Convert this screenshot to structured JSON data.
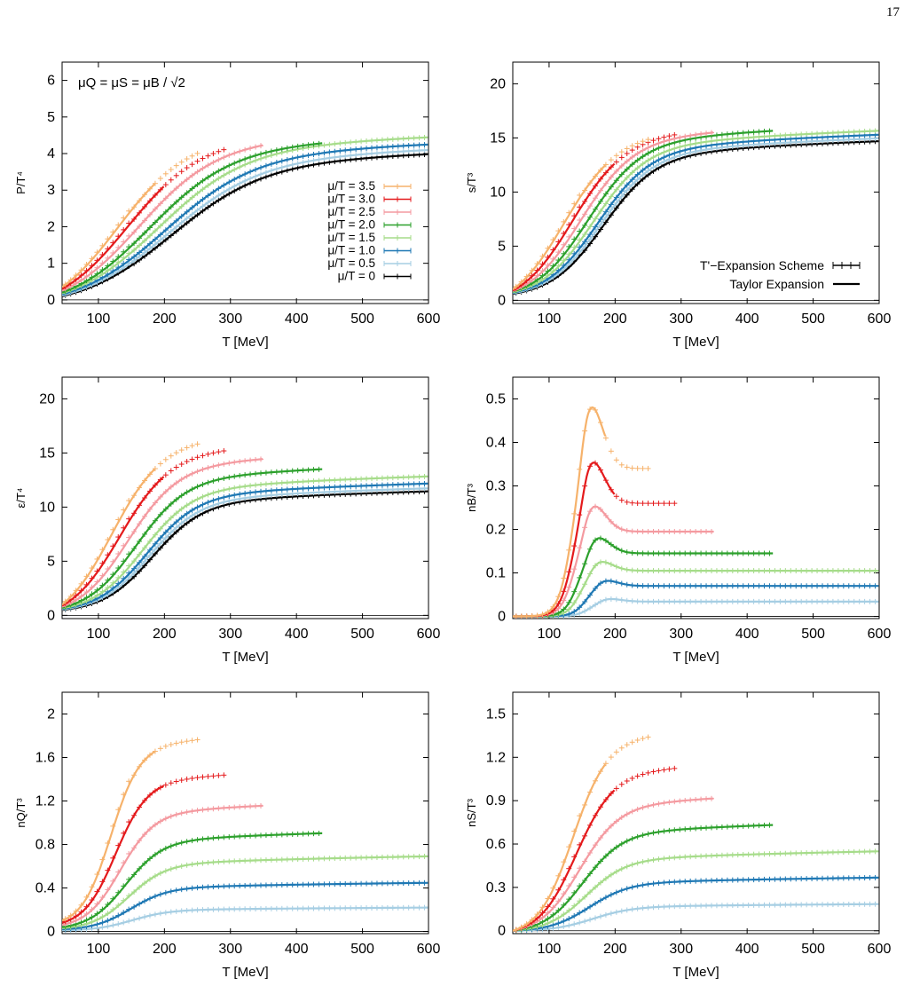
{
  "page": {
    "number": "17"
  },
  "colors": {
    "3.5": "#f6b26b",
    "3.0": "#e41a1c",
    "2.5": "#f49aa0",
    "2.0": "#2ca02c",
    "1.5": "#a6dc8a",
    "1.0": "#1f78b4",
    "0.5": "#a6cee3",
    "0": "#000000"
  },
  "legend_entries": [
    {
      "key": "3.5",
      "label": "μ/T = 3.5"
    },
    {
      "key": "3.0",
      "label": "μ/T = 3.0"
    },
    {
      "key": "2.5",
      "label": "μ/T = 2.5"
    },
    {
      "key": "2.0",
      "label": "μ/T = 2.0"
    },
    {
      "key": "1.5",
      "label": "μ/T = 1.5"
    },
    {
      "key": "1.0",
      "label": "μ/T = 1.0"
    },
    {
      "key": "0.5",
      "label": "μ/T = 0.5"
    },
    {
      "key": "0",
      "label": "μ/T = 0"
    }
  ],
  "legend_scheme": {
    "expansion": "T'−Expansion Scheme",
    "taylor": "Taylor Expansion"
  },
  "annotation": "μQ = μS = μB / √2",
  "chart_data": [
    {
      "id": "pressure",
      "type": "line",
      "ylabel": "P/T⁴",
      "xlabel": "T [MeV]",
      "xlim": [
        45,
        600
      ],
      "ylim": [
        -0.1,
        6.5
      ],
      "xticks": [
        100,
        200,
        300,
        400,
        500,
        600
      ],
      "yticks": [
        0,
        1,
        2,
        3,
        4,
        5,
        6
      ],
      "legend": "center-right",
      "series": [
        {
          "key": "0",
          "xmax": 600,
          "xmid": 205,
          "w": 70,
          "base": 0.1,
          "amp": 4.8
        },
        {
          "key": "0.5",
          "xmax": 600,
          "xmid": 200,
          "w": 70,
          "base": 0.12,
          "amp": 4.95
        },
        {
          "key": "1.0",
          "xmax": 600,
          "xmid": 195,
          "w": 68,
          "base": 0.15,
          "amp": 5.1
        },
        {
          "key": "1.5",
          "xmax": 600,
          "xmid": 185,
          "w": 66,
          "base": 0.18,
          "amp": 5.35
        },
        {
          "key": "2.0",
          "xmax": 440,
          "xmid": 172,
          "w": 62,
          "base": 0.2,
          "amp": 5.4
        },
        {
          "key": "2.5",
          "xmax": 350,
          "xmid": 157,
          "w": 58,
          "base": 0.25,
          "amp": 5.6
        },
        {
          "key": "3.0",
          "xmax": 290,
          "xmid": 140,
          "w": 54,
          "base": 0.3,
          "amp": 5.75
        },
        {
          "key": "3.5",
          "xmax": 250,
          "xmid": 125,
          "w": 52,
          "base": 0.35,
          "amp": 6.0
        }
      ]
    },
    {
      "id": "entropy",
      "type": "line",
      "ylabel": "s/T³",
      "xlabel": "T [MeV]",
      "xlim": [
        45,
        600
      ],
      "ylim": [
        -0.3,
        22
      ],
      "xticks": [
        100,
        200,
        300,
        400,
        500,
        600
      ],
      "yticks": [
        0,
        5,
        10,
        15,
        20
      ],
      "legend": "bottom-right",
      "series": [
        {
          "key": "0",
          "xmax": 600,
          "xmid": 180,
          "w": 40,
          "base": 0.6,
          "amp": 16.3
        },
        {
          "key": "0.5",
          "xmax": 600,
          "xmid": 176,
          "w": 40,
          "base": 0.65,
          "amp": 16.6
        },
        {
          "key": "1.0",
          "xmax": 600,
          "xmid": 172,
          "w": 40,
          "base": 0.7,
          "amp": 17.0
        },
        {
          "key": "1.5",
          "xmax": 600,
          "xmid": 165,
          "w": 40,
          "base": 0.75,
          "amp": 17.5
        },
        {
          "key": "2.0",
          "xmax": 440,
          "xmid": 157,
          "w": 40,
          "base": 0.8,
          "amp": 18.2
        },
        {
          "key": "2.5",
          "xmax": 350,
          "xmid": 146,
          "w": 40,
          "base": 0.85,
          "amp": 18.8
        },
        {
          "key": "3.0",
          "xmax": 290,
          "xmid": 133,
          "w": 40,
          "base": 0.9,
          "amp": 19.6
        },
        {
          "key": "3.5",
          "xmax": 250,
          "xmid": 120,
          "w": 40,
          "base": 1.0,
          "amp": 20.3
        }
      ]
    },
    {
      "id": "energy",
      "type": "line",
      "ylabel": "ε/T⁴",
      "xlabel": "T [MeV]",
      "xlim": [
        45,
        600
      ],
      "ylim": [
        -0.3,
        22
      ],
      "xticks": [
        100,
        200,
        300,
        400,
        500,
        600
      ],
      "yticks": [
        0,
        5,
        10,
        15,
        20
      ],
      "legend": "none",
      "series": [
        {
          "key": "0",
          "xmax": 600,
          "xmid": 180,
          "w": 38,
          "base": 0.5,
          "amp": 12.6
        },
        {
          "key": "0.5",
          "xmax": 600,
          "xmid": 176,
          "w": 38,
          "base": 0.55,
          "amp": 12.9
        },
        {
          "key": "1.0",
          "xmax": 600,
          "xmid": 172,
          "w": 38,
          "base": 0.6,
          "amp": 13.4
        },
        {
          "key": "1.5",
          "xmax": 600,
          "xmid": 165,
          "w": 38,
          "base": 0.65,
          "amp": 14.2
        },
        {
          "key": "2.0",
          "xmax": 440,
          "xmid": 155,
          "w": 38,
          "base": 0.7,
          "amp": 15.6
        },
        {
          "key": "2.5",
          "xmax": 350,
          "xmid": 143,
          "w": 38,
          "base": 0.8,
          "amp": 17.4
        },
        {
          "key": "3.0",
          "xmax": 290,
          "xmid": 130,
          "w": 38,
          "base": 0.9,
          "amp": 19.3
        },
        {
          "key": "3.5",
          "xmax": 250,
          "xmid": 118,
          "w": 38,
          "base": 1.0,
          "amp": 21.4
        }
      ]
    },
    {
      "id": "nB",
      "type": "line",
      "ylabel": "nB/T³",
      "xlabel": "T [MeV]",
      "xlim": [
        45,
        600
      ],
      "ylim": [
        -0.005,
        0.55
      ],
      "xticks": [
        100,
        200,
        300,
        400,
        500,
        600
      ],
      "yticks": [
        0,
        0.1,
        0.2,
        0.3,
        0.4,
        0.5
      ],
      "legend": "none",
      "peaked": true,
      "series": [
        {
          "key": "0.5",
          "xmax": 600,
          "xpk": 185,
          "w": 20,
          "peak": 0.042,
          "plateau": 0.034
        },
        {
          "key": "1.0",
          "xmax": 600,
          "xpk": 180,
          "w": 20,
          "peak": 0.086,
          "plateau": 0.07
        },
        {
          "key": "1.5",
          "xmax": 600,
          "xpk": 172,
          "w": 20,
          "peak": 0.132,
          "plateau": 0.105
        },
        {
          "key": "2.0",
          "xmax": 440,
          "xpk": 168,
          "w": 20,
          "peak": 0.19,
          "plateau": 0.145
        },
        {
          "key": "2.5",
          "xmax": 350,
          "xpk": 162,
          "w": 20,
          "peak": 0.268,
          "plateau": 0.195
        },
        {
          "key": "3.0",
          "xmax": 290,
          "xpk": 160,
          "w": 20,
          "peak": 0.376,
          "plateau": 0.26
        },
        {
          "key": "3.5",
          "xmax": 250,
          "xpk": 158,
          "w": 20,
          "peak": 0.512,
          "plateau": 0.34
        }
      ]
    },
    {
      "id": "nQ",
      "type": "line",
      "ylabel": "nQ/T³",
      "xlabel": "T [MeV]",
      "xlim": [
        45,
        600
      ],
      "ylim": [
        -0.02,
        2.2
      ],
      "xticks": [
        100,
        200,
        300,
        400,
        500,
        600
      ],
      "yticks": [
        0,
        0.4,
        0.8,
        1.2,
        1.6,
        2
      ],
      "ytickLabels": [
        "0",
        "0.4",
        "0.8",
        "1.2",
        "1.6",
        "2"
      ],
      "legend": "none",
      "series": [
        {
          "key": "0.5",
          "xmax": 600,
          "xmid": 150,
          "w": 28,
          "base": 0.01,
          "amp": 0.24
        },
        {
          "key": "1.0",
          "xmax": 600,
          "xmid": 148,
          "w": 28,
          "base": 0.02,
          "amp": 0.49
        },
        {
          "key": "1.5",
          "xmax": 600,
          "xmid": 145,
          "w": 28,
          "base": 0.03,
          "amp": 0.76
        },
        {
          "key": "2.0",
          "xmax": 440,
          "xmid": 140,
          "w": 28,
          "base": 0.04,
          "amp": 1.03
        },
        {
          "key": "2.5",
          "xmax": 350,
          "xmid": 132,
          "w": 26,
          "base": 0.06,
          "amp": 1.34
        },
        {
          "key": "3.0",
          "xmax": 290,
          "xmid": 125,
          "w": 24,
          "base": 0.08,
          "amp": 1.69
        },
        {
          "key": "3.5",
          "xmax": 250,
          "xmid": 118,
          "w": 22,
          "base": 0.1,
          "amp": 2.1
        }
      ]
    },
    {
      "id": "nS",
      "type": "line",
      "ylabel": "nS/T³",
      "xlabel": "T [MeV]",
      "xlim": [
        45,
        600
      ],
      "ylim": [
        -0.02,
        1.65
      ],
      "xticks": [
        100,
        200,
        300,
        400,
        500,
        600
      ],
      "yticks": [
        0,
        0.3,
        0.6,
        0.9,
        1.2,
        1.5
      ],
      "legend": "none",
      "series": [
        {
          "key": "0.5",
          "xmax": 600,
          "xmid": 165,
          "w": 30,
          "base": 0.0,
          "amp": 0.21
        },
        {
          "key": "1.0",
          "xmax": 600,
          "xmid": 160,
          "w": 30,
          "base": 0.0,
          "amp": 0.42
        },
        {
          "key": "1.5",
          "xmax": 600,
          "xmid": 155,
          "w": 30,
          "base": 0.0,
          "amp": 0.63
        },
        {
          "key": "2.0",
          "xmax": 440,
          "xmid": 150,
          "w": 30,
          "base": 0.0,
          "amp": 0.87
        },
        {
          "key": "2.5",
          "xmax": 350,
          "xmid": 145,
          "w": 30,
          "base": 0.0,
          "amp": 1.12
        },
        {
          "key": "3.0",
          "xmax": 290,
          "xmid": 140,
          "w": 28,
          "base": 0.0,
          "amp": 1.4
        },
        {
          "key": "3.5",
          "xmax": 250,
          "xmid": 135,
          "w": 26,
          "base": 0.0,
          "amp": 1.7
        }
      ]
    }
  ]
}
